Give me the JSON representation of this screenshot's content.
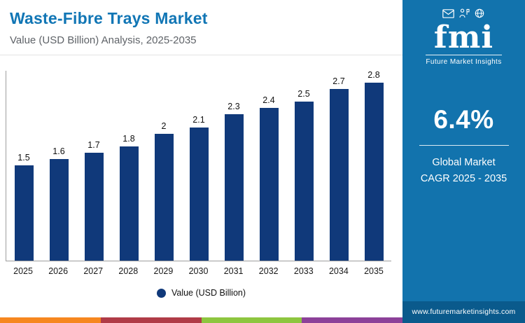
{
  "header": {
    "title": "Waste-Fibre Trays Market",
    "subtitle": "Value (USD Billion) Analysis, 2025-2035"
  },
  "chart_data": {
    "type": "bar",
    "categories": [
      "2025",
      "2026",
      "2027",
      "2028",
      "2029",
      "2030",
      "2031",
      "2032",
      "2033",
      "2034",
      "2035"
    ],
    "values": [
      1.5,
      1.6,
      1.7,
      1.8,
      2,
      2.1,
      2.3,
      2.4,
      2.5,
      2.7,
      2.8
    ],
    "value_labels": [
      "1.5",
      "1.6",
      "1.7",
      "1.8",
      "2",
      "2.1",
      "2.3",
      "2.4",
      "2.5",
      "2.7",
      "2.8"
    ],
    "title": "Waste-Fibre Trays Market",
    "xlabel": "",
    "ylabel": "Value (USD Billion)",
    "ylim": [
      0,
      3
    ],
    "grid": false,
    "legend": {
      "label": "Value (USD Billion)",
      "position": "bottom"
    },
    "bar_color": "#10397a"
  },
  "sidebar": {
    "logo": {
      "icons": [
        "envelope-icon",
        "person-presenting-icon",
        "globe-icon"
      ],
      "text": "fmi",
      "subtext": "Future Market Insights"
    },
    "cagr": {
      "value": "6.4%",
      "label_line1": "Global Market",
      "label_line2": "CAGR 2025 - 2035"
    },
    "website": "www.futuremarketinsights.com",
    "background": "#1273ad",
    "footer_background": "#0a5a8c"
  },
  "footer": {
    "stripe_colors": [
      "#f6871f",
      "#b03b47",
      "#8dc63f",
      "#8c4199"
    ]
  }
}
